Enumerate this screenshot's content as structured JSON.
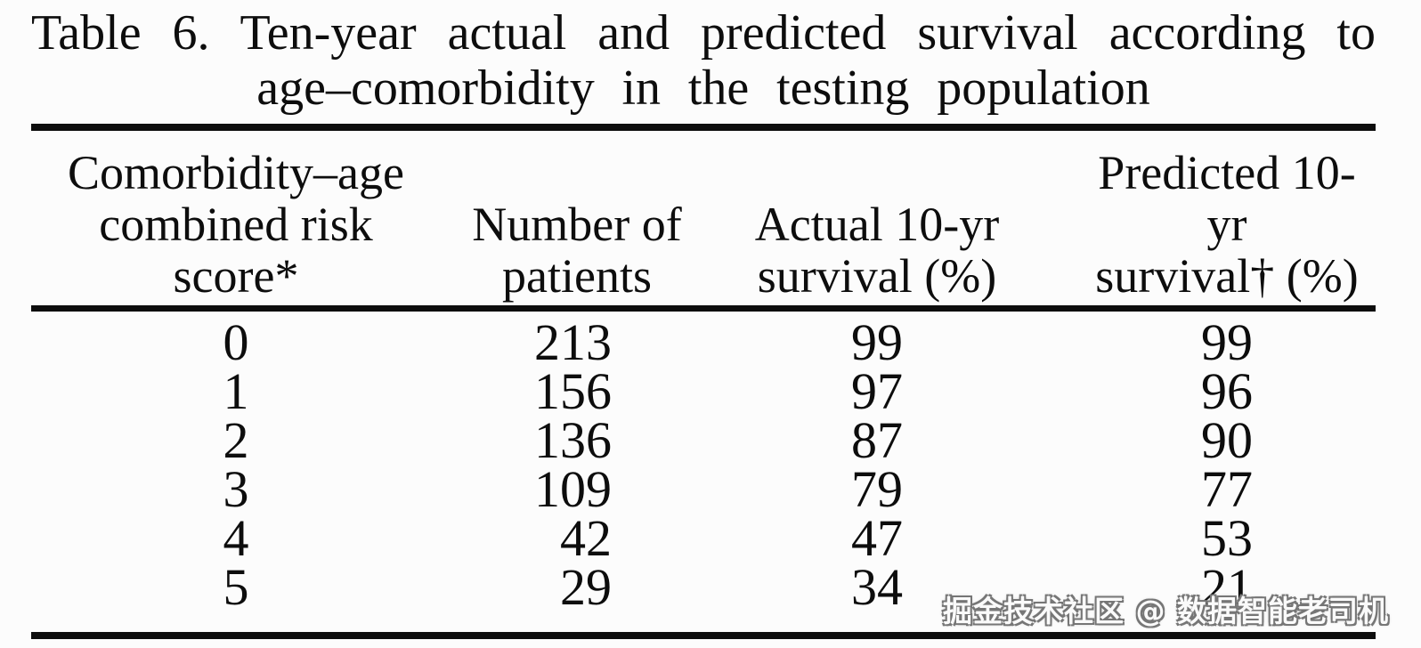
{
  "title": {
    "line1": "Table 6. Ten-year actual and predicted survival according to",
    "line2": "age–comorbidity in the testing population"
  },
  "table": {
    "columns": [
      {
        "id": "score",
        "lines": [
          "Comorbidity–age",
          "combined risk",
          "score*"
        ]
      },
      {
        "id": "patients",
        "lines": [
          "Number of",
          "patients"
        ]
      },
      {
        "id": "actual",
        "lines": [
          "Actual 10-yr",
          "survival (%)"
        ]
      },
      {
        "id": "predicted",
        "lines": [
          "Predicted 10-yr",
          "survival† (%)"
        ]
      }
    ],
    "rows": [
      {
        "score": "0",
        "patients": "213",
        "actual": "99",
        "predicted": "99"
      },
      {
        "score": "1",
        "patients": "156",
        "actual": "97",
        "predicted": "96"
      },
      {
        "score": "2",
        "patients": "136",
        "actual": "87",
        "predicted": "90"
      },
      {
        "score": "3",
        "patients": "109",
        "actual": "79",
        "predicted": "77"
      },
      {
        "score": "4",
        "patients": "42",
        "actual": "47",
        "predicted": "53"
      },
      {
        "score": "5",
        "patients": "29",
        "actual": "34",
        "predicted": "21"
      }
    ]
  },
  "watermark": "掘金技术社区 @ 数据智能老司机",
  "colors": {
    "ink": "#0d0d0d",
    "background": "#fcfcfc",
    "watermark_fill": "#fafafa",
    "watermark_outline": "#767676"
  }
}
